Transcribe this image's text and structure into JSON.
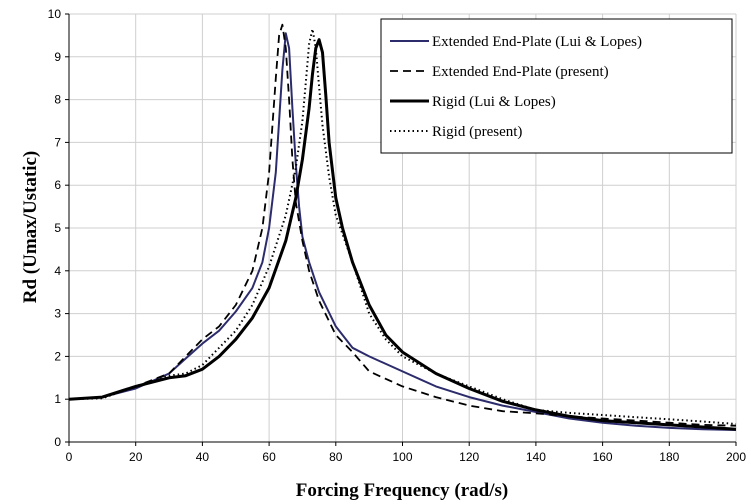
{
  "chart_data": {
    "type": "line",
    "xlabel": "Forcing Frequency (rad/s)",
    "ylabel": "Rd (Umax/Ustatic)",
    "xlim": [
      0,
      200
    ],
    "ylim": [
      0,
      10
    ],
    "xticks": [
      0,
      20,
      40,
      60,
      80,
      100,
      120,
      140,
      160,
      180,
      200
    ],
    "yticks": [
      0,
      1,
      2,
      3,
      4,
      5,
      6,
      7,
      8,
      9,
      10
    ],
    "grid": true,
    "legend_position": "top-right",
    "series": [
      {
        "name": "Extended End-Plate (Lui & Lopes)",
        "style": "solid-thin",
        "color": "#2c2c6c",
        "points": [
          [
            0,
            1.0
          ],
          [
            10,
            1.05
          ],
          [
            20,
            1.25
          ],
          [
            30,
            1.6
          ],
          [
            35,
            1.95
          ],
          [
            40,
            2.3
          ],
          [
            45,
            2.6
          ],
          [
            50,
            3.05
          ],
          [
            55,
            3.6
          ],
          [
            58,
            4.2
          ],
          [
            60,
            5.0
          ],
          [
            62,
            6.3
          ],
          [
            63,
            7.5
          ],
          [
            64,
            8.7
          ],
          [
            65,
            9.55
          ],
          [
            66,
            9.2
          ],
          [
            67,
            7.8
          ],
          [
            68,
            6.5
          ],
          [
            69,
            5.5
          ],
          [
            70,
            4.8
          ],
          [
            72,
            4.2
          ],
          [
            75,
            3.5
          ],
          [
            80,
            2.7
          ],
          [
            85,
            2.2
          ],
          [
            90,
            2.0
          ],
          [
            100,
            1.65
          ],
          [
            110,
            1.3
          ],
          [
            120,
            1.05
          ],
          [
            130,
            0.85
          ],
          [
            140,
            0.7
          ],
          [
            150,
            0.55
          ],
          [
            160,
            0.45
          ],
          [
            170,
            0.38
          ],
          [
            180,
            0.33
          ],
          [
            190,
            0.3
          ],
          [
            200,
            0.28
          ]
        ]
      },
      {
        "name": "Extended End-Plate (present)",
        "style": "dashed",
        "color": "#000000",
        "points": [
          [
            0,
            1.0
          ],
          [
            10,
            1.05
          ],
          [
            20,
            1.3
          ],
          [
            30,
            1.6
          ],
          [
            35,
            2.0
          ],
          [
            40,
            2.4
          ],
          [
            45,
            2.7
          ],
          [
            50,
            3.2
          ],
          [
            55,
            4.0
          ],
          [
            58,
            5.0
          ],
          [
            60,
            6.3
          ],
          [
            62,
            8.5
          ],
          [
            63,
            9.5
          ],
          [
            64,
            9.75
          ],
          [
            65,
            9.2
          ],
          [
            66,
            8.0
          ],
          [
            67,
            6.6
          ],
          [
            68,
            5.6
          ],
          [
            70,
            4.7
          ],
          [
            72,
            4.0
          ],
          [
            75,
            3.3
          ],
          [
            80,
            2.5
          ],
          [
            85,
            2.1
          ],
          [
            90,
            1.65
          ],
          [
            100,
            1.3
          ],
          [
            110,
            1.05
          ],
          [
            120,
            0.85
          ],
          [
            130,
            0.72
          ],
          [
            140,
            0.67
          ],
          [
            150,
            0.6
          ],
          [
            160,
            0.55
          ],
          [
            170,
            0.5
          ],
          [
            180,
            0.45
          ],
          [
            190,
            0.4
          ],
          [
            200,
            0.38
          ]
        ]
      },
      {
        "name": "Rigid (Lui & Lopes)",
        "style": "solid-thick",
        "color": "#000000",
        "points": [
          [
            0,
            1.0
          ],
          [
            10,
            1.05
          ],
          [
            20,
            1.3
          ],
          [
            30,
            1.5
          ],
          [
            35,
            1.55
          ],
          [
            40,
            1.7
          ],
          [
            45,
            2.0
          ],
          [
            50,
            2.4
          ],
          [
            55,
            2.9
          ],
          [
            60,
            3.6
          ],
          [
            65,
            4.7
          ],
          [
            68,
            5.7
          ],
          [
            70,
            6.6
          ],
          [
            72,
            7.8
          ],
          [
            73,
            8.6
          ],
          [
            74,
            9.2
          ],
          [
            75,
            9.4
          ],
          [
            76,
            9.1
          ],
          [
            77,
            8.1
          ],
          [
            78,
            7.0
          ],
          [
            80,
            5.7
          ],
          [
            82,
            5.0
          ],
          [
            85,
            4.2
          ],
          [
            90,
            3.2
          ],
          [
            95,
            2.5
          ],
          [
            100,
            2.1
          ],
          [
            110,
            1.6
          ],
          [
            120,
            1.25
          ],
          [
            130,
            0.95
          ],
          [
            140,
            0.75
          ],
          [
            150,
            0.6
          ],
          [
            160,
            0.5
          ],
          [
            170,
            0.45
          ],
          [
            180,
            0.4
          ],
          [
            190,
            0.35
          ],
          [
            200,
            0.3
          ]
        ]
      },
      {
        "name": "Rigid (present)",
        "style": "dotted",
        "color": "#000000",
        "points": [
          [
            0,
            1.0
          ],
          [
            10,
            1.02
          ],
          [
            20,
            1.3
          ],
          [
            30,
            1.55
          ],
          [
            35,
            1.6
          ],
          [
            40,
            1.8
          ],
          [
            45,
            2.2
          ],
          [
            50,
            2.6
          ],
          [
            55,
            3.2
          ],
          [
            60,
            4.1
          ],
          [
            65,
            5.3
          ],
          [
            68,
            6.4
          ],
          [
            70,
            7.5
          ],
          [
            71,
            8.4
          ],
          [
            72,
            9.3
          ],
          [
            73,
            9.65
          ],
          [
            74,
            9.2
          ],
          [
            75,
            8.3
          ],
          [
            76,
            7.4
          ],
          [
            78,
            6.2
          ],
          [
            80,
            5.3
          ],
          [
            85,
            4.2
          ],
          [
            90,
            3.0
          ],
          [
            95,
            2.4
          ],
          [
            100,
            2.0
          ],
          [
            110,
            1.6
          ],
          [
            120,
            1.3
          ],
          [
            130,
            1.0
          ],
          [
            140,
            0.75
          ],
          [
            150,
            0.68
          ],
          [
            160,
            0.63
          ],
          [
            170,
            0.58
          ],
          [
            180,
            0.53
          ],
          [
            190,
            0.48
          ],
          [
            200,
            0.42
          ]
        ]
      }
    ]
  }
}
